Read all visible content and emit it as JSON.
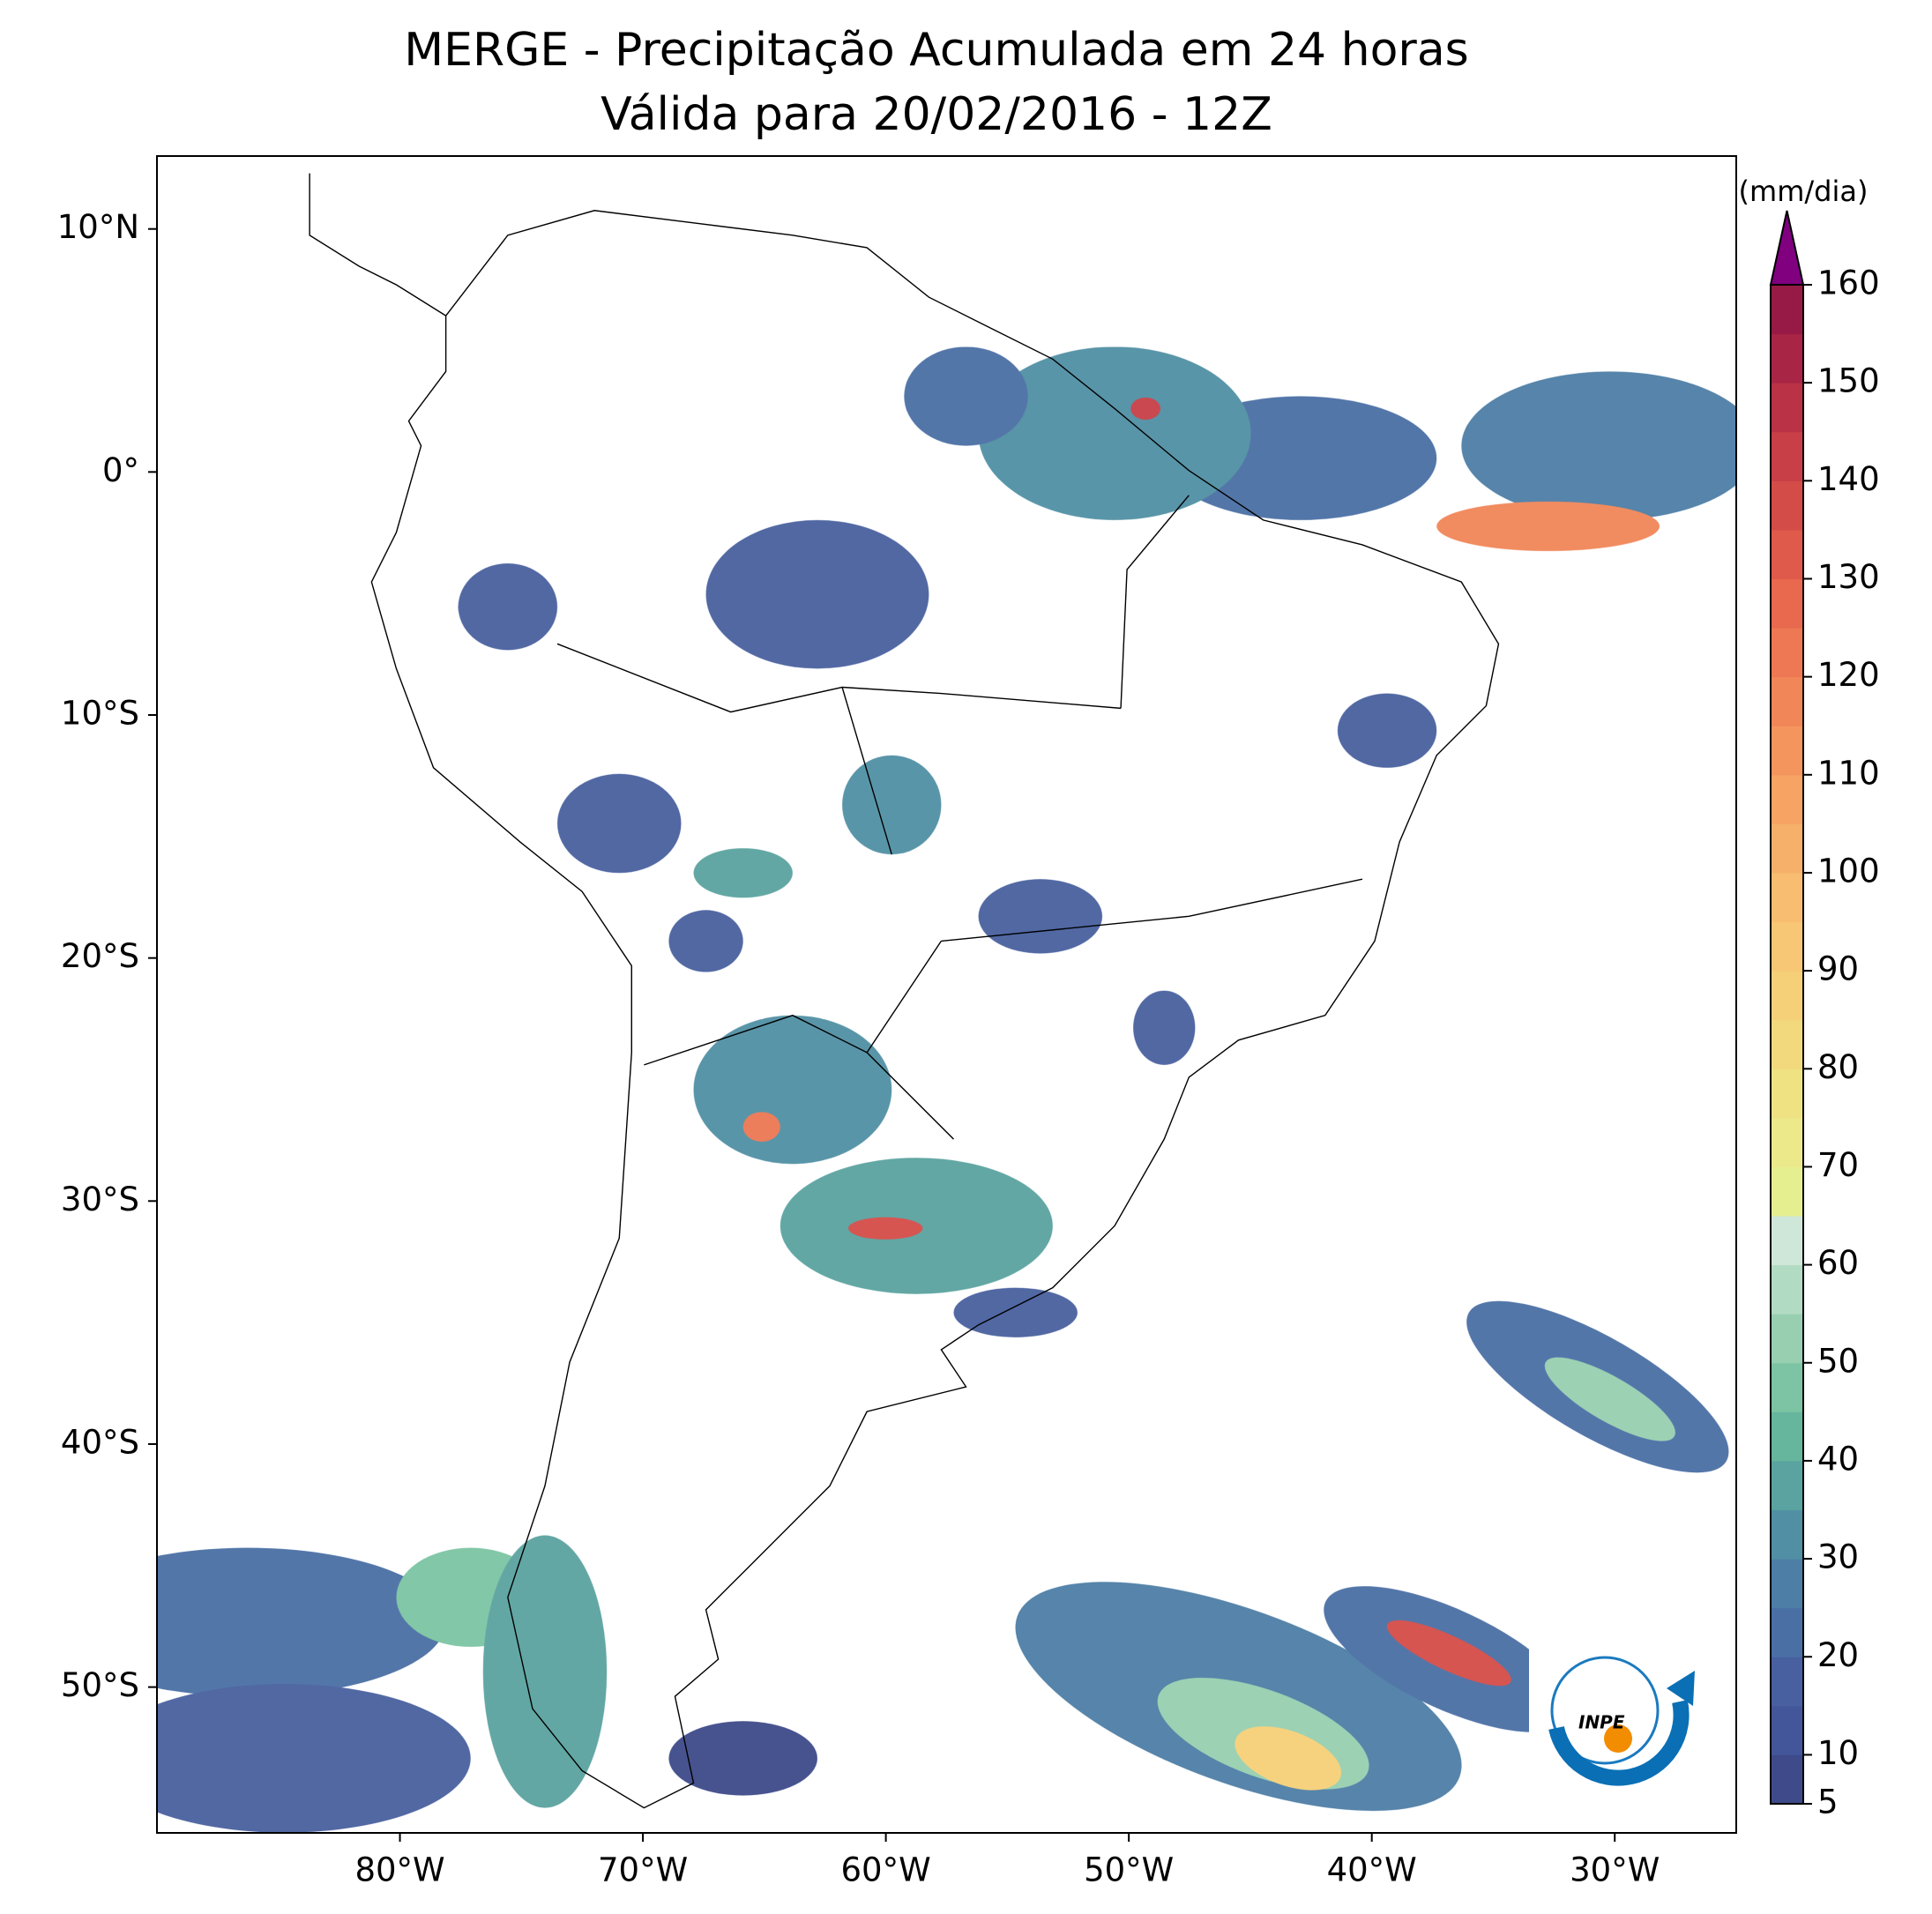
{
  "header": {
    "title": "MERGE - Precipitação Acumulada em 24 horas",
    "subtitle": "Válida para 20/02/2016 - 12Z"
  },
  "map": {
    "xlim": [
      -90,
      -25
    ],
    "ylim": [
      -56,
      13
    ],
    "xticks": [
      {
        "value": -80,
        "label": "80°W"
      },
      {
        "value": -70,
        "label": "70°W"
      },
      {
        "value": -60,
        "label": "60°W"
      },
      {
        "value": -50,
        "label": "50°W"
      },
      {
        "value": -40,
        "label": "40°W"
      },
      {
        "value": -30,
        "label": "30°W"
      }
    ],
    "yticks": [
      {
        "value": 10,
        "label": "10°N"
      },
      {
        "value": 0,
        "label": "0°"
      },
      {
        "value": -10,
        "label": "10°S"
      },
      {
        "value": -20,
        "label": "20°S"
      },
      {
        "value": -30,
        "label": "30°S"
      },
      {
        "value": -40,
        "label": "40°S"
      },
      {
        "value": -50,
        "label": "50°S"
      }
    ]
  },
  "colorbar": {
    "label": "(mm/dia)",
    "lim": [
      5,
      160
    ],
    "ticks": [
      5,
      10,
      20,
      30,
      40,
      50,
      60,
      70,
      80,
      90,
      100,
      110,
      120,
      130,
      140,
      150,
      160
    ],
    "levels": [
      5,
      10,
      15,
      20,
      25,
      30,
      35,
      40,
      45,
      50,
      55,
      60,
      65,
      70,
      75,
      80,
      85,
      90,
      95,
      100,
      105,
      110,
      115,
      120,
      125,
      130,
      135,
      140,
      145,
      150,
      155,
      160
    ],
    "colors": [
      "#3e4a89",
      "#43569a",
      "#48609f",
      "#4a6fa5",
      "#4d7ea6",
      "#5190a4",
      "#5aa3a0",
      "#66b59d",
      "#7cc4a3",
      "#97cfb0",
      "#b2dbc3",
      "#cfe7d8",
      "#e6ef90",
      "#ece98a",
      "#efe283",
      "#f3d97d",
      "#f6d079",
      "#f8c775",
      "#f8bd70",
      "#f6b06a",
      "#f6a364",
      "#f4955e",
      "#f18658",
      "#ed7853",
      "#e8694e",
      "#df5a4a",
      "#d44c48",
      "#c83f47",
      "#b93246",
      "#a82545",
      "#961a45"
    ],
    "extend_color": "#800080"
  },
  "logo": {
    "text": "INPE"
  }
}
